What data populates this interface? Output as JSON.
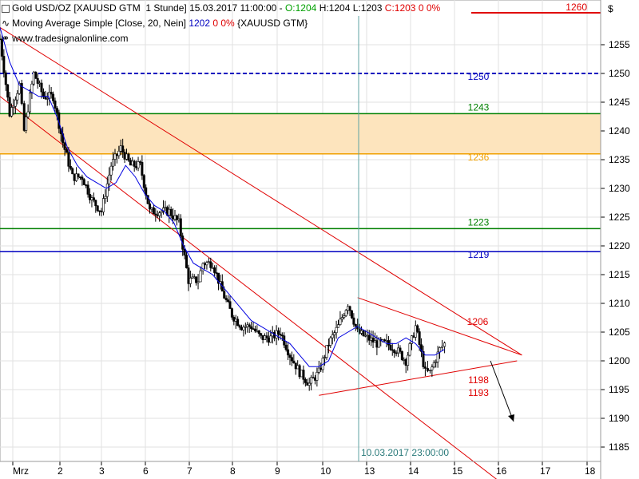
{
  "header": {
    "instrument": "Gold USD/OZ [XAUUSD GTM  1 Stunde]",
    "datetime": "15.03.2017 11:00:00",
    "open": "O:1204",
    "high": "H:1204",
    "low": "L:1203",
    "close": "C:1203",
    "change": "0 0%",
    "ma_label": "Moving Average Simple [Close, 20, Nein]",
    "ma_value": "1202",
    "ma_change": "0 0%",
    "ma_symbol": "{XAUUSD GTM}",
    "watermark": "www.tradesignalonline.com"
  },
  "chart_data": {
    "type": "candlestick",
    "currency_label": "$",
    "ylim": [
      1183,
      1262
    ],
    "y_ticks": [
      1185,
      1190,
      1195,
      1200,
      1205,
      1210,
      1215,
      1220,
      1225,
      1230,
      1235,
      1240,
      1245,
      1250,
      1255
    ],
    "x_ticks": [
      "Mrz",
      "2",
      "3",
      "6",
      "7",
      "8",
      "9",
      "10",
      "13",
      "14",
      "15",
      "16",
      "17",
      "18"
    ],
    "crosshair_label": "10.03.2017 23:00:00",
    "horizontal_levels": [
      {
        "value": 1260,
        "label": "1260",
        "color": "#e00000",
        "style": "solid"
      },
      {
        "value": 1250,
        "label": "1250",
        "color": "#0000c0",
        "style": "dashed"
      },
      {
        "value": 1243,
        "label": "1243",
        "color": "#008000",
        "style": "solid"
      },
      {
        "value": 1236,
        "label": "1236",
        "color": "#f0a000",
        "style": "solid"
      },
      {
        "value": 1223,
        "label": "1223",
        "color": "#008000",
        "style": "solid"
      },
      {
        "value": 1219,
        "label": "1219",
        "color": "#0000c0",
        "style": "solid"
      }
    ],
    "zone": {
      "from": 1236,
      "to": 1243,
      "color": "#fde4bd"
    },
    "annotations": [
      {
        "label": "1206",
        "value": 1206,
        "color": "#e00000"
      },
      {
        "label": "1198",
        "value": 1198,
        "color": "#e00000"
      },
      {
        "label": "1193",
        "value": 1193,
        "color": "#e00000"
      }
    ],
    "series": [
      {
        "name": "Gold USD/OZ",
        "kind": "candles",
        "close_path": [
          [
            0,
            1256
          ],
          [
            2,
            1243
          ],
          [
            4,
            1248
          ],
          [
            5,
            1240
          ],
          [
            7,
            1250
          ],
          [
            9,
            1246
          ],
          [
            11,
            1246
          ],
          [
            13,
            1238
          ],
          [
            15,
            1232
          ],
          [
            17,
            1232
          ],
          [
            19,
            1228
          ],
          [
            21,
            1226
          ],
          [
            23,
            1234
          ],
          [
            25,
            1237
          ],
          [
            27,
            1234
          ],
          [
            29,
            1234
          ],
          [
            31,
            1226
          ],
          [
            33,
            1226
          ],
          [
            35,
            1226
          ],
          [
            37,
            1224
          ],
          [
            39,
            1214
          ],
          [
            41,
            1214
          ],
          [
            42,
            1217
          ],
          [
            44,
            1217
          ],
          [
            46,
            1212
          ],
          [
            48,
            1208
          ],
          [
            50,
            1206
          ],
          [
            52,
            1206
          ],
          [
            54,
            1204
          ],
          [
            56,
            1204
          ],
          [
            58,
            1205
          ],
          [
            60,
            1201
          ],
          [
            62,
            1198
          ],
          [
            64,
            1196
          ],
          [
            66,
            1198
          ],
          [
            68,
            1203
          ],
          [
            70,
            1206
          ],
          [
            72,
            1210
          ],
          [
            74,
            1205
          ],
          [
            76,
            1204
          ],
          [
            78,
            1203
          ],
          [
            80,
            1203
          ],
          [
            82,
            1202
          ],
          [
            84,
            1200
          ],
          [
            86,
            1206
          ],
          [
            88,
            1198
          ],
          [
            89,
            1198
          ],
          [
            91,
            1202
          ],
          [
            92,
            1203
          ]
        ],
        "color": "#000000"
      },
      {
        "name": "Moving Average Simple [Close, 20, Nein]",
        "kind": "line",
        "path": [
          [
            0,
            1258
          ],
          [
            2,
            1252
          ],
          [
            4,
            1248
          ],
          [
            6,
            1247
          ],
          [
            8,
            1246
          ],
          [
            10,
            1246
          ],
          [
            12,
            1242
          ],
          [
            14,
            1237
          ],
          [
            16,
            1234
          ],
          [
            18,
            1232
          ],
          [
            20,
            1231
          ],
          [
            22,
            1230
          ],
          [
            24,
            1231
          ],
          [
            26,
            1234
          ],
          [
            28,
            1232
          ],
          [
            30,
            1229
          ],
          [
            32,
            1227
          ],
          [
            34,
            1226
          ],
          [
            36,
            1224
          ],
          [
            38,
            1220
          ],
          [
            40,
            1217
          ],
          [
            42,
            1216
          ],
          [
            44,
            1215
          ],
          [
            46,
            1213
          ],
          [
            48,
            1211
          ],
          [
            50,
            1209
          ],
          [
            52,
            1207
          ],
          [
            54,
            1206
          ],
          [
            56,
            1205
          ],
          [
            58,
            1204
          ],
          [
            60,
            1203
          ],
          [
            62,
            1201
          ],
          [
            64,
            1199
          ],
          [
            66,
            1199
          ],
          [
            68,
            1200
          ],
          [
            70,
            1204
          ],
          [
            72,
            1205
          ],
          [
            74,
            1206
          ],
          [
            76,
            1205
          ],
          [
            78,
            1204
          ],
          [
            80,
            1203
          ],
          [
            82,
            1203
          ],
          [
            84,
            1204
          ],
          [
            86,
            1203
          ],
          [
            88,
            1201
          ],
          [
            90,
            1201
          ],
          [
            92,
            1202
          ]
        ],
        "color": "#0000e0"
      }
    ],
    "trendlines": [
      {
        "from": [
          0,
          1258
        ],
        "to": [
          108,
          1201
        ],
        "color": "#e00000"
      },
      {
        "from": [
          0,
          1246
        ],
        "to": [
          108,
          1176
        ],
        "color": "#e00000"
      },
      {
        "from": [
          74,
          1211
        ],
        "to": [
          108,
          1201
        ],
        "color": "#e00000"
      },
      {
        "from": [
          66,
          1194
        ],
        "to": [
          107,
          1200
        ],
        "color": "#e00000"
      }
    ],
    "arrow": {
      "from": [
        96,
        1199
      ],
      "to": [
        102,
        1189
      ],
      "color": "#000000"
    }
  }
}
